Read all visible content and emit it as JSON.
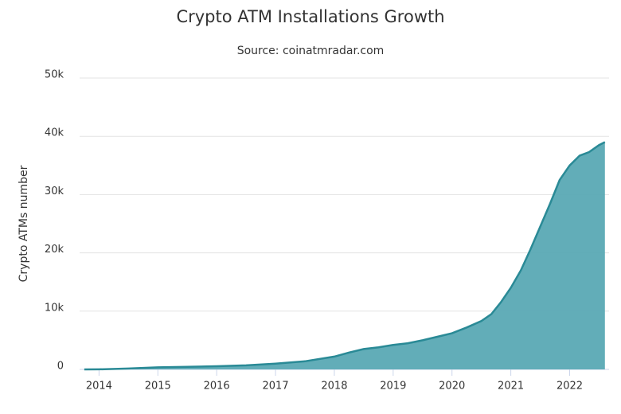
{
  "chart_data": {
    "type": "area",
    "title": "Crypto ATM Installations Growth",
    "subtitle": "Source: coinatmradar.com",
    "y_label": "Crypto ATMs number",
    "x": [
      2013.75,
      2014.0,
      2014.5,
      2015.0,
      2015.5,
      2016.0,
      2016.5,
      2017.0,
      2017.5,
      2018.0,
      2018.25,
      2018.5,
      2018.75,
      2019.0,
      2019.25,
      2019.5,
      2019.75,
      2020.0,
      2020.25,
      2020.5,
      2020.67,
      2020.83,
      2021.0,
      2021.17,
      2021.33,
      2021.5,
      2021.67,
      2021.83,
      2022.0,
      2022.17,
      2022.33,
      2022.5,
      2022.6
    ],
    "values": [
      0,
      20,
      150,
      350,
      450,
      550,
      700,
      1000,
      1400,
      2200,
      2900,
      3500,
      3800,
      4200,
      4500,
      5000,
      5600,
      6200,
      7200,
      8300,
      9500,
      11500,
      14000,
      17000,
      20500,
      24500,
      28500,
      32500,
      35000,
      36700,
      37300,
      38500,
      39000
    ],
    "color": "#5aa9b4",
    "line_color": "#2a8a96",
    "xlim": [
      2013.67,
      2022.67
    ],
    "xticks": [
      2014,
      2015,
      2016,
      2017,
      2018,
      2019,
      2020,
      2021,
      2022
    ],
    "ylim": [
      0,
      50000
    ],
    "yticks": [
      0,
      {
        "value": 10000,
        "label": "10k"
      },
      {
        "value": 20000,
        "label": "20k"
      },
      {
        "value": 30000,
        "label": "30k"
      },
      {
        "value": 40000,
        "label": "40k"
      },
      {
        "value": 50000,
        "label": "50k"
      }
    ],
    "grid": true
  }
}
